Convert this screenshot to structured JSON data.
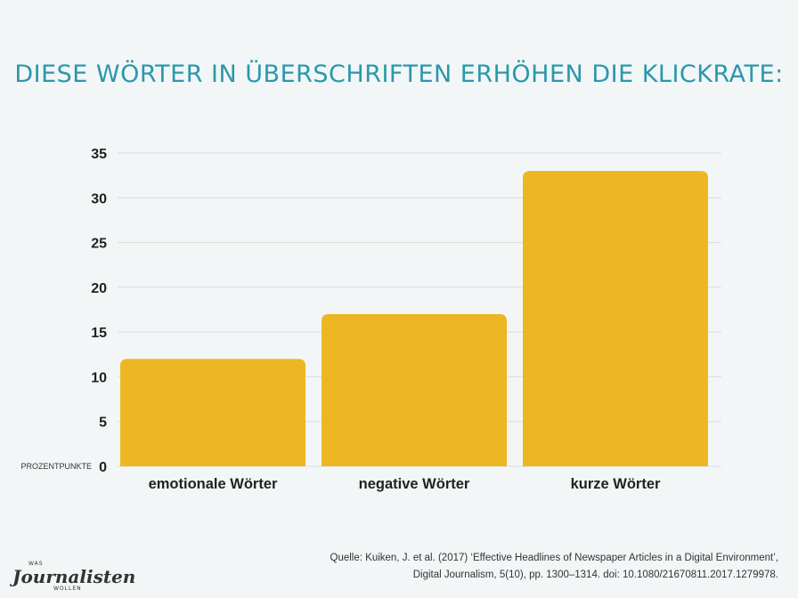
{
  "title": "DIESE WÖRTER IN ÜBERSCHRIFTEN ERHÖHEN DIE KLICKRATE:",
  "source": {
    "line1": "Quelle: Kuiken, J. et al. (2017) ‘Effective Headlines of Newspaper Articles in a Digital Environment’,",
    "line2": "Digital Journalism, 5(10), pp. 1300–1314. doi: 10.1080/21670811.2017.1279978."
  },
  "logo": {
    "top": "WAS",
    "main": "Journalisten",
    "bottom": "WOLLEN"
  },
  "colors": {
    "bar": "#ecb722",
    "title": "#2a98ac",
    "grid": "#dcdcdc",
    "axis_text": "#222222"
  },
  "chart_data": {
    "type": "bar",
    "categories": [
      "emotionale Wörter",
      "negative Wörter",
      "kurze Wörter"
    ],
    "values": [
      12,
      17,
      33
    ],
    "ylabel": "PROZENTPUNKTE",
    "yticks": [
      0,
      5,
      10,
      15,
      20,
      25,
      30,
      35
    ],
    "ylim": [
      0,
      35
    ],
    "grid": true
  }
}
